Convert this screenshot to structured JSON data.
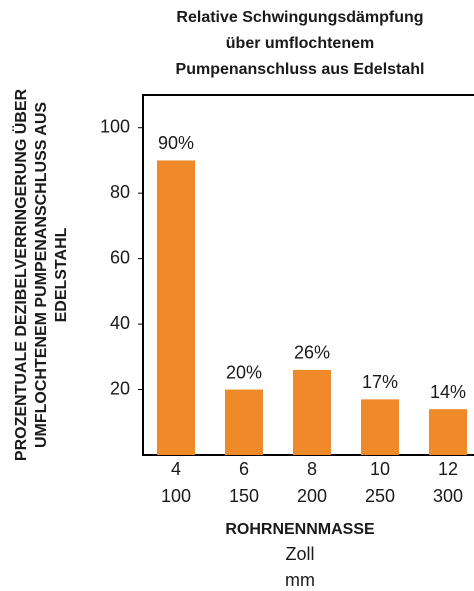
{
  "chart_data": {
    "type": "bar",
    "title": [
      "Relative Schwingungsdämpfung",
      "über umflochtenem",
      "Pumpenanschluss aus Edelstahl"
    ],
    "ylabel": [
      "PROZENTUALE DEZIBELVERRINGERUNG ÜBER",
      "UMFLOCHTENEM PUMPENANSCHLUSS AUS",
      "EDELSTAHL"
    ],
    "xlabel": "ROHRNENNMASSE",
    "xunits": [
      "Zoll",
      "mm"
    ],
    "categories": [
      [
        "4",
        "100"
      ],
      [
        "6",
        "150"
      ],
      [
        "8",
        "200"
      ],
      [
        "10",
        "250"
      ],
      [
        "12",
        "300"
      ]
    ],
    "values": [
      90,
      20,
      26,
      17,
      14
    ],
    "value_labels": [
      "90%",
      "20%",
      "26%",
      "17%",
      "14%"
    ],
    "color": "#ee8a2a",
    "ylim": [
      0,
      110
    ],
    "yticks": [
      20,
      40,
      60,
      80,
      100
    ],
    "grid": false
  }
}
